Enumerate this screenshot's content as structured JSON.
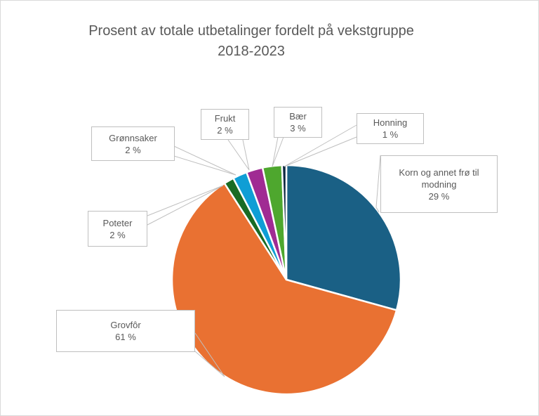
{
  "chart_data": {
    "type": "pie",
    "title": "Prosent av totale utbetalinger fordelt på vekstgruppe 2018-2023",
    "title_lines": [
      "Prosent av totale utbetalinger fordelt på vekstgruppe",
      "2018-2023"
    ],
    "categories": [
      "Korn og annet frø til modning",
      "Grovfôr",
      "Poteter",
      "Grønnsaker",
      "Frukt",
      "Bær",
      "Honning"
    ],
    "values": [
      29,
      61,
      2,
      2,
      2,
      3,
      1
    ],
    "labels": [
      "29 %",
      "61 %",
      "2 %",
      "2 %",
      "2 %",
      "3 %",
      "1 %"
    ],
    "colors": [
      "#1a6085",
      "#e97132",
      "#196b24",
      "#0f9ed5",
      "#a02b93",
      "#4ea72e",
      "#0e2841"
    ],
    "legend": "none",
    "data_labels": "callouts with category name and percent"
  },
  "labels": {
    "korn": {
      "name": "Korn og annet frø til",
      "name2": "modning",
      "pct": "29 %"
    },
    "grovfor": {
      "name": "Grovfôr",
      "pct": "61 %"
    },
    "poteter": {
      "name": "Poteter",
      "pct": "2 %"
    },
    "gronnsaker": {
      "name": "Grønnsaker",
      "pct": "2 %"
    },
    "frukt": {
      "name": "Frukt",
      "pct": "2 %"
    },
    "baer": {
      "name": "Bær",
      "pct": "3 %"
    },
    "honning": {
      "name": "Honning",
      "pct": "1 %"
    }
  }
}
